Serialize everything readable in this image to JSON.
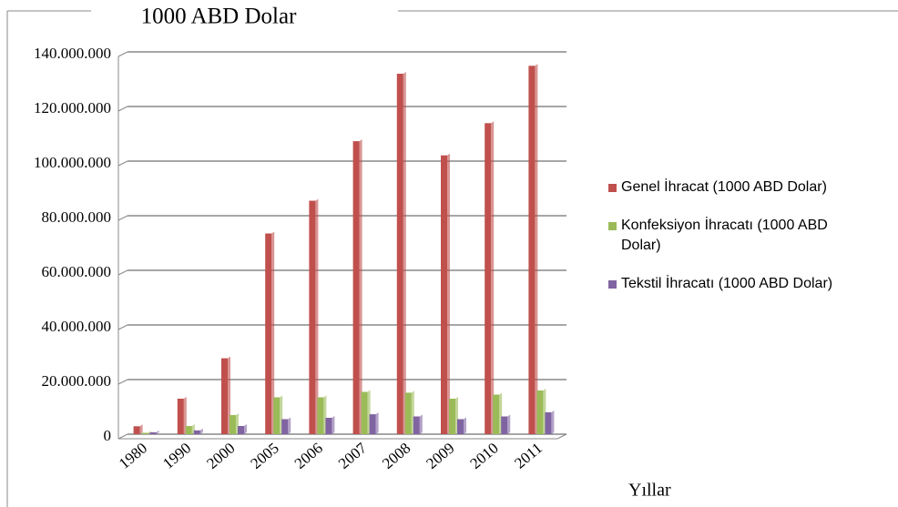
{
  "chart_data": {
    "type": "bar",
    "title": "1000 ABD Dolar",
    "x_label": "Yıllar",
    "categories": [
      "1980",
      "1990",
      "2000",
      "2005",
      "2006",
      "2007",
      "2008",
      "2009",
      "2010",
      "2011"
    ],
    "series": [
      {
        "name": "Genel İhracat (1000 ABD Dolar)",
        "color": "#c0504d",
        "values": [
          2900000,
          13000000,
          27800000,
          73500000,
          85500000,
          107300000,
          132000000,
          102100000,
          113900000,
          134900000
        ]
      },
      {
        "name": "Konfeksiyon İhracatı (1000 ABD Dolar)",
        "color": "#9bbb59",
        "values": [
          500000,
          3000000,
          7000000,
          13500000,
          13500000,
          15500000,
          15200000,
          13000000,
          14500000,
          16000000
        ]
      },
      {
        "name": "Tekstil İhracatı (1000 ABD Dolar)",
        "color": "#8064a2",
        "values": [
          700000,
          1400000,
          3000000,
          5500000,
          6000000,
          7300000,
          6500000,
          5500000,
          6500000,
          8000000
        ]
      }
    ],
    "ylim": [
      0,
      140000000
    ],
    "yticks": [
      0,
      {
        "value": 20000000,
        "label": "20.000.000"
      },
      {
        "value": 40000000,
        "label": "40.000.000"
      },
      {
        "value": 60000000,
        "label": "60.000.000"
      },
      {
        "value": 80000000,
        "label": "80.000.000"
      },
      {
        "value": 100000000,
        "label": "100.000.000"
      },
      {
        "value": 120000000,
        "label": "120.000.000"
      },
      {
        "value": 140000000,
        "label": "140.000.000"
      }
    ],
    "grid": true,
    "legend": "right"
  }
}
